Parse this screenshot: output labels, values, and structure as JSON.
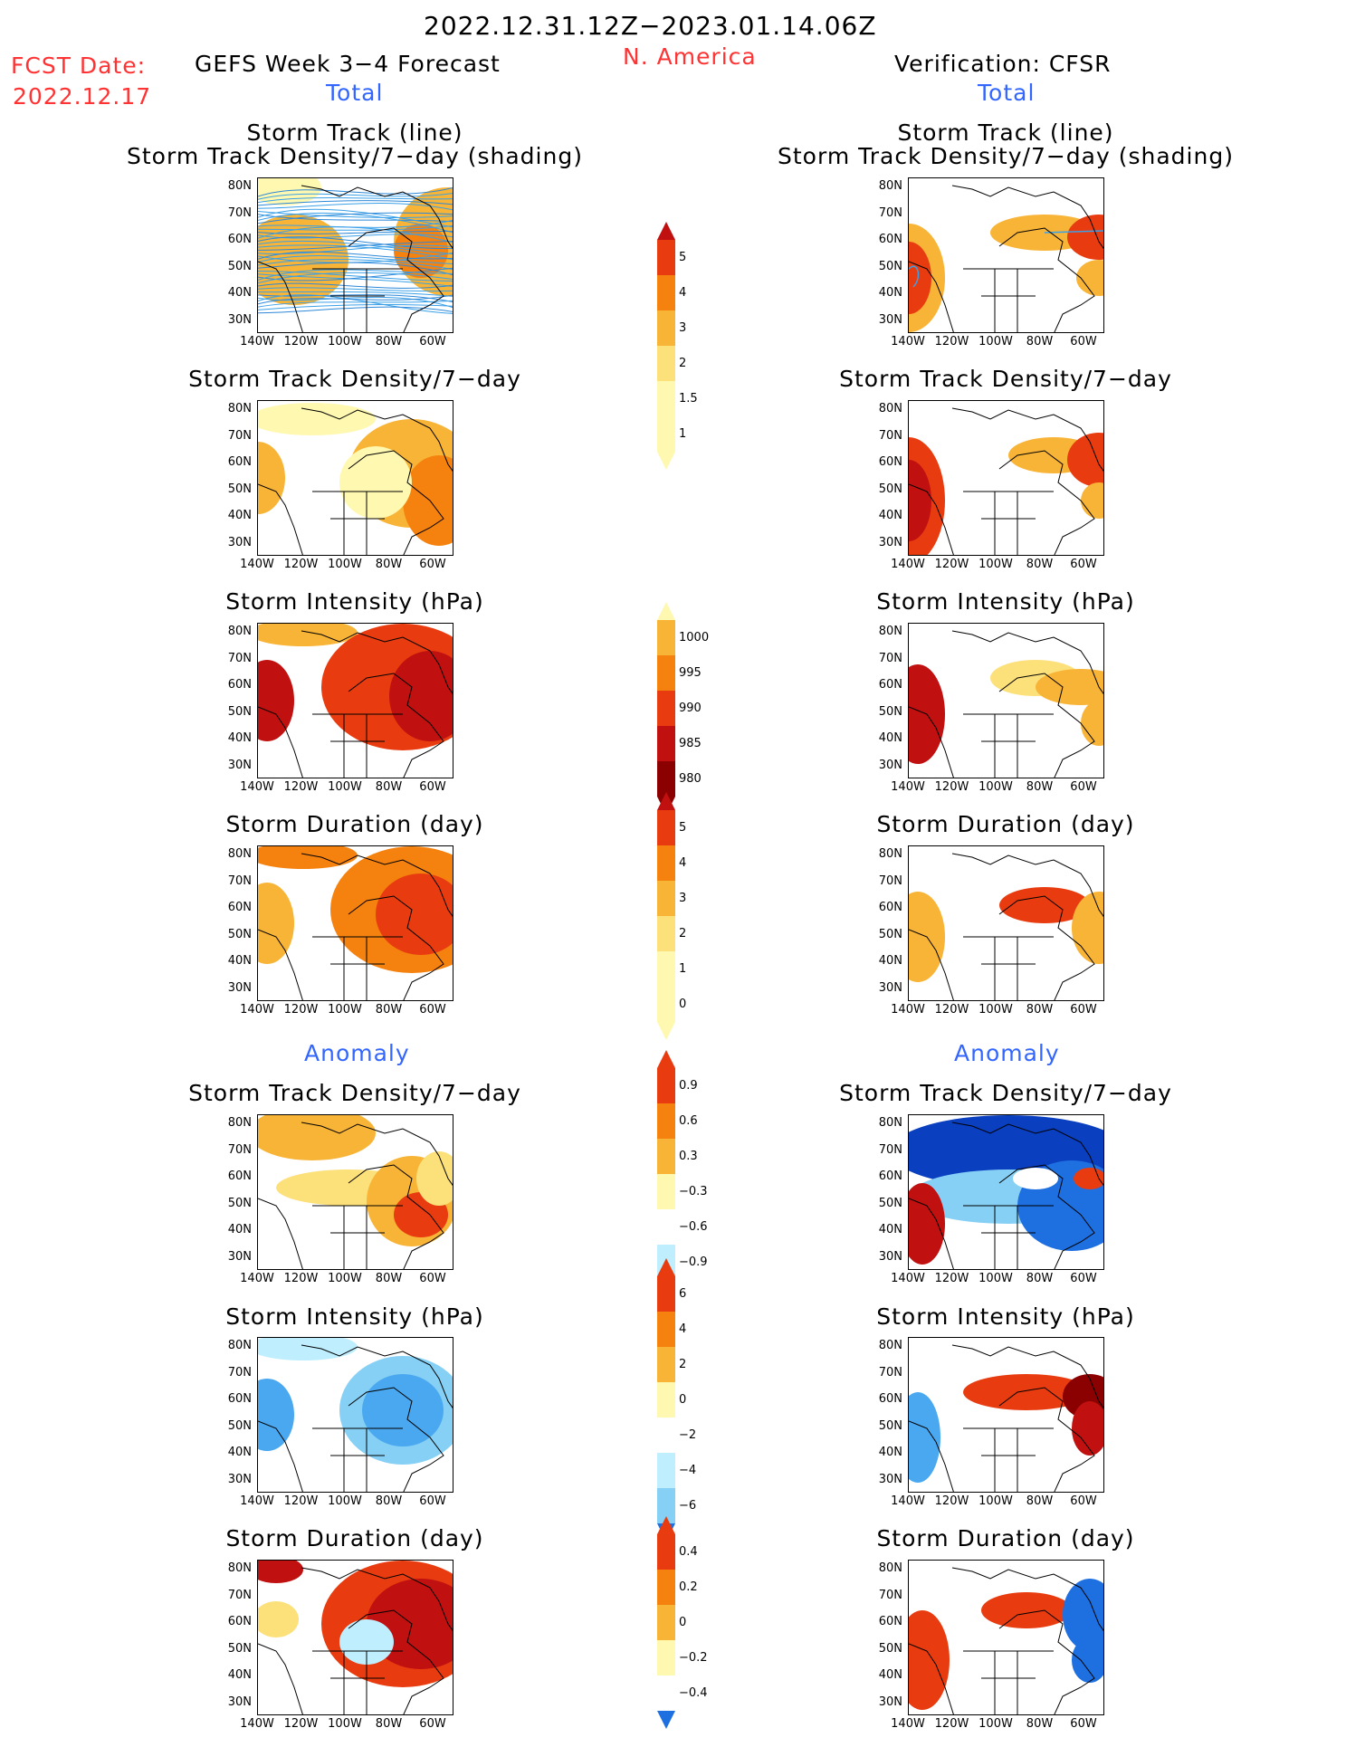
{
  "header": {
    "title": "2022.12.31.12Z−2023.01.14.06Z",
    "region": "N. America",
    "fcst_label": "FCST Date:",
    "fcst_date": "2022.12.17",
    "forecast_label": "GEFS Week 3−4 Forecast",
    "verification_label": "Verification: CFSR",
    "total_left": "Total",
    "total_right": "Total",
    "anomaly_left": "Anomaly",
    "anomaly_right": "Anomaly"
  },
  "panel_titles": {
    "track_line": "Storm Track (line)",
    "track_shading": "Storm Track Density/7−day (shading)",
    "density": "Storm Track Density/7−day",
    "intensity": "Storm Intensity (hPa)",
    "duration": "Storm Duration (day)"
  },
  "axes": {
    "lat_labels": [
      "80N",
      "70N",
      "60N",
      "50N",
      "40N",
      "30N"
    ],
    "lon_labels": [
      "140W",
      "120W",
      "100W",
      "80W",
      "60W"
    ]
  },
  "colorbars": {
    "density_total": [
      "5",
      "4",
      "3",
      "2",
      "1.5",
      "1"
    ],
    "intensity_total": [
      "1000",
      "995",
      "990",
      "985",
      "980"
    ],
    "duration_total": [
      "5",
      "4",
      "3",
      "2",
      "1",
      "0"
    ],
    "density_anom": [
      "0.9",
      "0.6",
      "0.3",
      "−0.3",
      "−0.6",
      "−0.9"
    ],
    "intensity_anom": [
      "6",
      "4",
      "2",
      "0",
      "−2",
      "−4",
      "−6"
    ],
    "duration_anom": [
      "0.4",
      "0.2",
      "0",
      "−0.2",
      "−0.4"
    ]
  },
  "colors": {
    "title_red": "#ff3333",
    "accent_blue": "#3366ff",
    "warm_scale": [
      "#fff8b0",
      "#fce07a",
      "#f8b436",
      "#f5820f",
      "#e83c10",
      "#c01010",
      "#8b0000"
    ],
    "cool_scale": [
      "#bfefff",
      "#86d0f5",
      "#4aa8f0",
      "#1e6fe0",
      "#0a3fc0"
    ]
  }
}
